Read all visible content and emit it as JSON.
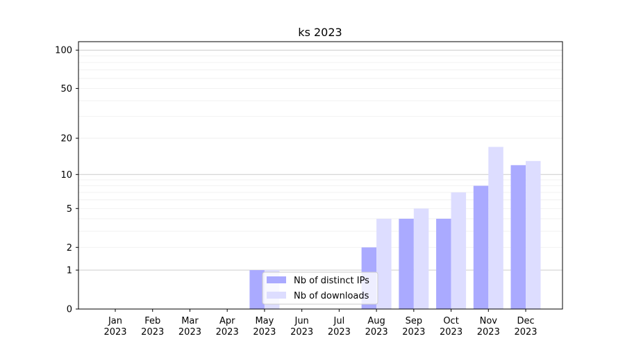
{
  "chart_data": {
    "type": "bar",
    "title": "ks 2023",
    "xlabel": "",
    "ylabel": "",
    "yscale": "log10(1+y)",
    "ylim": [
      0,
      110
    ],
    "yticks": [
      0,
      1,
      2,
      5,
      10,
      20,
      50,
      100
    ],
    "grid": "y major and minor",
    "legend_position": "lower center",
    "categories": [
      [
        "Jan",
        "2023"
      ],
      [
        "Feb",
        "2023"
      ],
      [
        "Mar",
        "2023"
      ],
      [
        "Apr",
        "2023"
      ],
      [
        "May",
        "2023"
      ],
      [
        "Jun",
        "2023"
      ],
      [
        "Jul",
        "2023"
      ],
      [
        "Aug",
        "2023"
      ],
      [
        "Sep",
        "2023"
      ],
      [
        "Oct",
        "2023"
      ],
      [
        "Nov",
        "2023"
      ],
      [
        "Dec",
        "2023"
      ]
    ],
    "series": [
      {
        "name": "Nb of distinct IPs",
        "color": "#aaaaff",
        "values": [
          0,
          0,
          0,
          0,
          1,
          0,
          0,
          2,
          4,
          4,
          8,
          12
        ]
      },
      {
        "name": "Nb of downloads",
        "color": "#ddddff",
        "values": [
          0,
          0,
          0,
          0,
          1,
          0,
          0,
          4,
          5,
          7,
          17,
          13
        ]
      }
    ]
  }
}
